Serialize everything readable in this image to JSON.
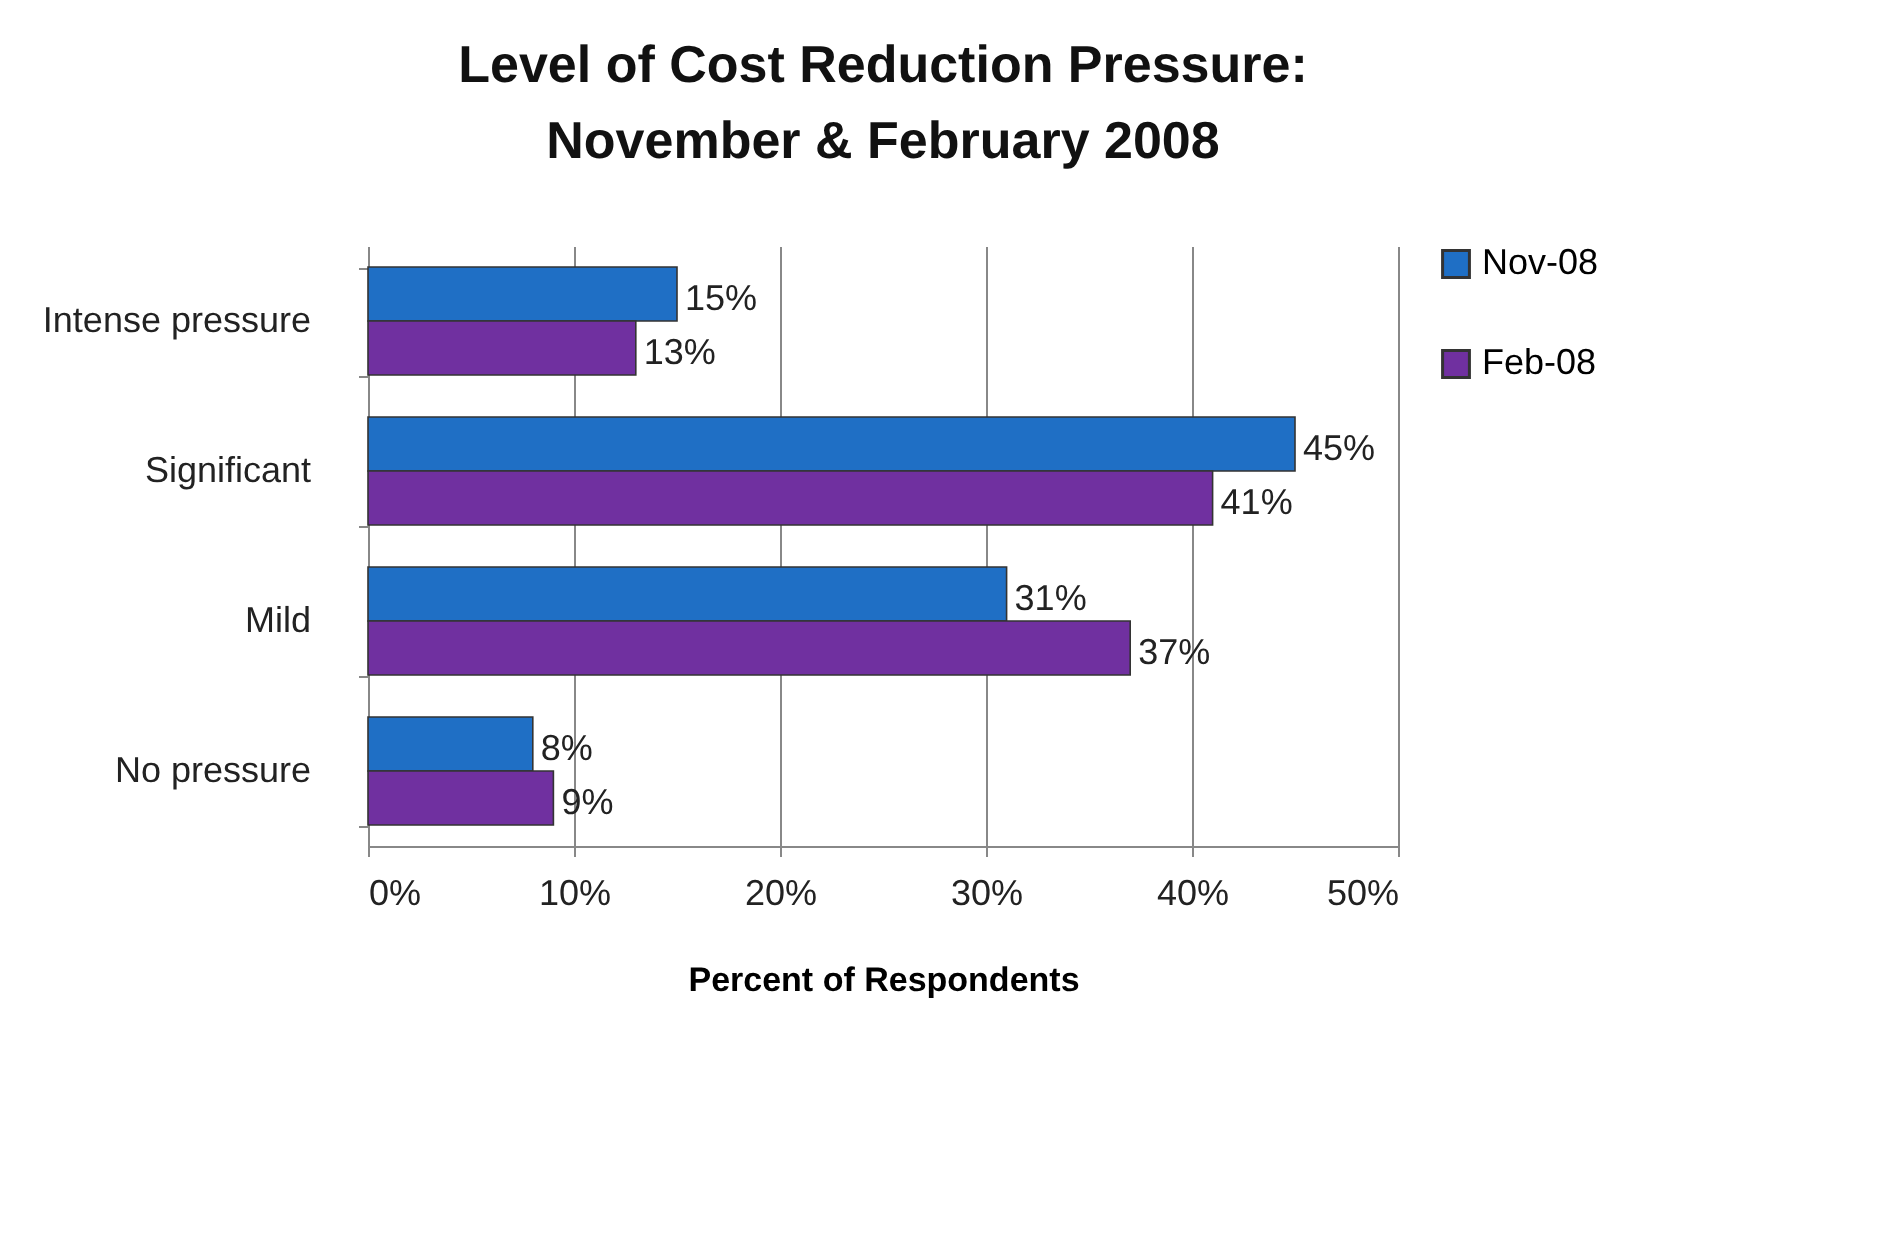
{
  "chart_data": {
    "type": "bar",
    "orientation": "horizontal",
    "title": "Level of Cost Reduction Pressure:  November & February 2008",
    "xlabel": "Percent of Respondents",
    "categories": [
      "Intense pressure",
      "Significant",
      "Mild",
      "No pressure"
    ],
    "series": [
      {
        "name": "Nov-08",
        "color": "#1f6fc5",
        "values": [
          15,
          45,
          31,
          8
        ],
        "value_labels": [
          "15%",
          "45%",
          "31%",
          "8%"
        ]
      },
      {
        "name": "Feb-08",
        "color": "#7030a0",
        "values": [
          13,
          41,
          37,
          9
        ],
        "value_labels": [
          "13%",
          "41%",
          "37%",
          "9%"
        ]
      }
    ],
    "xlim": [
      0,
      50
    ],
    "xticks": [
      {
        "value": 0,
        "label": "0%"
      },
      {
        "value": 10,
        "label": "10%"
      },
      {
        "value": 20,
        "label": "20%"
      },
      {
        "value": 30,
        "label": "30%"
      },
      {
        "value": 40,
        "label": "40%"
      },
      {
        "value": 50,
        "label": "50%"
      }
    ],
    "grid": "x",
    "legend": "right"
  }
}
